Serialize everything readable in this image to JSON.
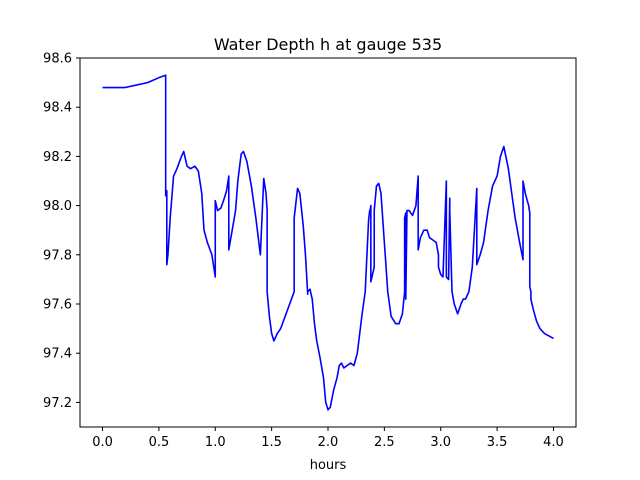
{
  "chart_data": {
    "type": "line",
    "title": "Water Depth h at gauge 535",
    "xlabel": "hours",
    "ylabel": "",
    "xlim": [
      -0.2,
      4.2
    ],
    "ylim": [
      97.1,
      98.6
    ],
    "xticks": [
      0.0,
      0.5,
      1.0,
      1.5,
      2.0,
      2.5,
      3.0,
      3.5,
      4.0
    ],
    "xtick_labels": [
      "0.0",
      "0.5",
      "1.0",
      "1.5",
      "2.0",
      "2.5",
      "3.0",
      "3.5",
      "4.0"
    ],
    "yticks": [
      97.2,
      97.4,
      97.6,
      97.8,
      98.0,
      98.2,
      98.4,
      98.6
    ],
    "ytick_labels": [
      "97.2",
      "97.4",
      "97.6",
      "97.8",
      "98.0",
      "98.2",
      "98.4",
      "98.6"
    ],
    "grid": false,
    "series": [
      {
        "color": "#0000ff",
        "x": [
          0.0,
          0.1,
          0.2,
          0.3,
          0.4,
          0.5,
          0.56,
          0.56,
          0.57,
          0.57,
          0.58,
          0.6,
          0.63,
          0.66,
          0.7,
          0.72,
          0.75,
          0.78,
          0.82,
          0.85,
          0.88,
          0.9,
          0.93,
          0.97,
          1.0,
          1.0,
          1.02,
          1.05,
          1.08,
          1.1,
          1.12,
          1.12,
          1.15,
          1.18,
          1.2,
          1.23,
          1.25,
          1.28,
          1.32,
          1.36,
          1.4,
          1.43,
          1.43,
          1.45,
          1.46,
          1.46,
          1.48,
          1.5,
          1.52,
          1.55,
          1.58,
          1.62,
          1.66,
          1.7,
          1.7,
          1.73,
          1.75,
          1.78,
          1.8,
          1.82,
          1.82,
          1.84,
          1.86,
          1.88,
          1.9,
          1.93,
          1.96,
          1.98,
          2.0,
          2.02,
          2.05,
          2.08,
          2.1,
          2.12,
          2.14,
          2.17,
          2.2,
          2.23,
          2.26,
          2.3,
          2.33,
          2.36,
          2.37,
          2.37,
          2.38,
          2.38,
          2.41,
          2.41,
          2.43,
          2.45,
          2.47,
          2.5,
          2.53,
          2.56,
          2.6,
          2.63,
          2.66,
          2.68,
          2.68,
          2.69,
          2.69,
          2.7,
          2.7,
          2.72,
          2.75,
          2.78,
          2.8,
          2.8,
          2.82,
          2.85,
          2.88,
          2.9,
          2.93,
          2.96,
          2.98,
          2.98,
          3.0,
          3.02,
          3.05,
          3.05,
          3.07,
          3.08,
          3.08,
          3.1,
          3.12,
          3.15,
          3.18,
          3.2,
          3.22,
          3.25,
          3.28,
          3.32,
          3.32,
          3.35,
          3.38,
          3.42,
          3.46,
          3.5,
          3.53,
          3.56,
          3.6,
          3.63,
          3.66,
          3.7,
          3.73,
          3.73,
          3.75,
          3.78,
          3.79,
          3.79,
          3.8,
          3.8,
          3.82,
          3.85,
          3.88,
          3.92,
          3.96,
          4.0
        ],
        "y": [
          98.48,
          98.48,
          98.48,
          98.49,
          98.5,
          98.52,
          98.53,
          98.04,
          98.06,
          97.76,
          97.8,
          97.95,
          98.12,
          98.15,
          98.2,
          98.22,
          98.16,
          98.15,
          98.16,
          98.14,
          98.05,
          97.9,
          97.85,
          97.8,
          97.71,
          98.02,
          97.98,
          97.99,
          98.03,
          98.06,
          98.12,
          97.82,
          97.9,
          97.98,
          98.1,
          98.21,
          98.22,
          98.18,
          98.08,
          97.95,
          97.8,
          98.11,
          98.11,
          98.05,
          97.98,
          97.65,
          97.55,
          97.48,
          97.45,
          97.48,
          97.5,
          97.55,
          97.6,
          97.65,
          97.95,
          98.07,
          98.05,
          97.92,
          97.8,
          97.64,
          97.65,
          97.66,
          97.62,
          97.52,
          97.45,
          97.38,
          97.3,
          97.2,
          97.17,
          97.18,
          97.25,
          97.3,
          97.35,
          97.36,
          97.34,
          97.35,
          97.36,
          97.35,
          97.4,
          97.55,
          97.65,
          97.94,
          97.98,
          97.97,
          98.0,
          97.69,
          97.75,
          97.98,
          98.08,
          98.09,
          98.05,
          97.85,
          97.65,
          97.55,
          97.52,
          97.52,
          97.56,
          97.65,
          97.95,
          97.97,
          97.62,
          97.96,
          97.98,
          97.98,
          97.96,
          98.0,
          98.12,
          97.82,
          97.87,
          97.9,
          97.9,
          97.87,
          97.86,
          97.85,
          97.8,
          97.75,
          97.72,
          97.71,
          98.1,
          97.71,
          97.7,
          98.03,
          97.98,
          97.65,
          97.6,
          97.56,
          97.6,
          97.62,
          97.62,
          97.65,
          97.75,
          98.07,
          97.76,
          97.8,
          97.85,
          97.98,
          98.08,
          98.12,
          98.2,
          98.24,
          98.15,
          98.05,
          97.95,
          97.85,
          97.78,
          98.1,
          98.05,
          98.0,
          97.97,
          97.67,
          97.65,
          97.62,
          97.58,
          97.53,
          97.5,
          97.48,
          97.47,
          97.46
        ]
      }
    ]
  }
}
